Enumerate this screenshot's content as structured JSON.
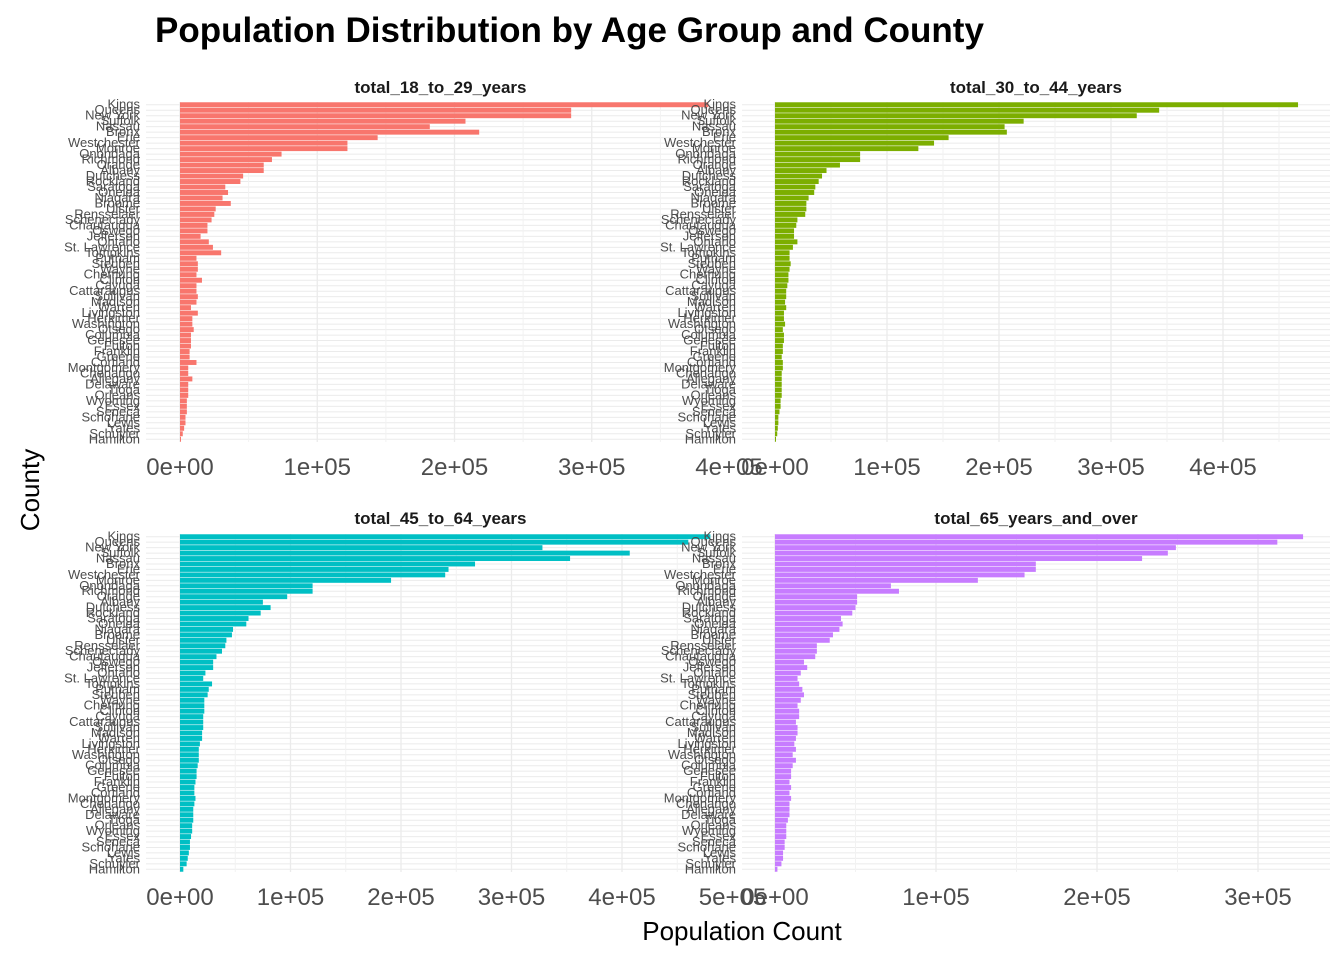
{
  "chart_data": {
    "type": "bar",
    "orientation": "horizontal",
    "title": "Population Distribution by Age Group and County",
    "xlabel": "Population Count",
    "ylabel": "County",
    "grid": true,
    "legend": "none",
    "counties": [
      "Kings",
      "Queens",
      "New York",
      "Suffolk",
      "Nassau",
      "Bronx",
      "Erie",
      "Westchester",
      "Monroe",
      "Onondaga",
      "Richmond",
      "Orange",
      "Albany",
      "Dutchess",
      "Rockland",
      "Saratoga",
      "Oneida",
      "Niagara",
      "Broome",
      "Ulster",
      "Rensselaer",
      "Schenectady",
      "Chautauqua",
      "Oswego",
      "Jefferson",
      "Ontario",
      "St. Lawrence",
      "Tompkins",
      "Putnam",
      "Steuben",
      "Wayne",
      "Chemung",
      "Clinton",
      "Cayuga",
      "Cattaraugus",
      "Sullivan",
      "Madison",
      "Warren",
      "Livingston",
      "Herkimer",
      "Washington",
      "Otsego",
      "Columbia",
      "Genesee",
      "Fulton",
      "Franklin",
      "Greene",
      "Cortland",
      "Montgomery",
      "Chenango",
      "Allegany",
      "Delaware",
      "Tioga",
      "Orleans",
      "Wyoming",
      "Essex",
      "Seneca",
      "Schoharie",
      "Lewis",
      "Yates",
      "Schuyler",
      "Hamilton"
    ],
    "facets": [
      {
        "name": "total_18_to_29_years",
        "color": "#F8766D",
        "xlim": [
          0,
          400000
        ],
        "ticks": [
          "0e+00",
          "1e+05",
          "2e+05",
          "3e+05",
          "4e+05"
        ],
        "values": [
          385000,
          285000,
          285000,
          208000,
          182000,
          218000,
          144000,
          122000,
          122000,
          74000,
          67000,
          61000,
          61000,
          46000,
          44000,
          33000,
          35000,
          31000,
          37000,
          26000,
          25000,
          23000,
          20000,
          20000,
          15000,
          21000,
          24000,
          30000,
          12000,
          13000,
          13000,
          12000,
          16000,
          12000,
          12000,
          13000,
          12000,
          8000,
          13000,
          9000,
          9000,
          10000,
          8000,
          8000,
          8000,
          7000,
          7000,
          12000,
          6000,
          6000,
          9000,
          6000,
          6000,
          6000,
          5000,
          5000,
          5000,
          4000,
          4000,
          3000,
          2000,
          500
        ]
      },
      {
        "name": "total_30_to_44_years",
        "color": "#7CAE00",
        "xlim": [
          0,
          480000
        ],
        "ticks": [
          "0e+00",
          "1e+05",
          "2e+05",
          "3e+05",
          "4e+05"
        ],
        "values": [
          467000,
          343000,
          323000,
          222000,
          205000,
          207000,
          155000,
          142000,
          128000,
          76000,
          76000,
          58000,
          46000,
          42000,
          39000,
          36000,
          35000,
          30000,
          28000,
          28000,
          27000,
          20000,
          19000,
          17000,
          17000,
          20000,
          16000,
          13000,
          13000,
          14000,
          13000,
          12000,
          12000,
          11000,
          10000,
          10000,
          9000,
          10000,
          8000,
          8000,
          9000,
          7000,
          8000,
          8000,
          7000,
          7000,
          6000,
          7000,
          7000,
          6000,
          6000,
          6000,
          6000,
          6000,
          5000,
          5000,
          4000,
          3000,
          3000,
          2500,
          2000,
          500
        ]
      },
      {
        "name": "total_45_to_64_years",
        "color": "#00BFC4",
        "xlim": [
          0,
          480000
        ],
        "ticks": [
          "0e+00",
          "1e+05",
          "2e+05",
          "3e+05",
          "4e+05",
          "5e+05"
        ],
        "values": [
          480000,
          460000,
          328000,
          407000,
          353000,
          267000,
          243000,
          240000,
          191000,
          120000,
          120000,
          97000,
          75000,
          82000,
          73000,
          62000,
          60000,
          48000,
          47000,
          42000,
          41000,
          38000,
          33000,
          30000,
          30000,
          23000,
          21000,
          29000,
          26000,
          25000,
          22000,
          22000,
          22000,
          21000,
          21000,
          21000,
          20000,
          20000,
          18000,
          17000,
          17000,
          17000,
          16000,
          15000,
          15000,
          14000,
          13000,
          13000,
          14000,
          13000,
          12000,
          12000,
          12000,
          11000,
          11000,
          10000,
          9000,
          9000,
          8000,
          7000,
          6000,
          3000
        ]
      },
      {
        "name": "total_65_years_and_over",
        "color": "#C77CFF",
        "xlim": [
          0,
          320000
        ],
        "ticks": [
          "0e+00",
          "1e+05",
          "2e+05",
          "3e+05"
        ],
        "values": [
          328000,
          312000,
          249000,
          244000,
          228000,
          162000,
          162000,
          155000,
          126000,
          72000,
          77000,
          51000,
          51000,
          50000,
          48000,
          41000,
          42000,
          40000,
          36000,
          34000,
          26000,
          26000,
          25000,
          18000,
          20000,
          16000,
          14000,
          15000,
          17000,
          18000,
          16000,
          14000,
          15000,
          15000,
          13000,
          14000,
          14000,
          13000,
          12000,
          13000,
          11000,
          13000,
          11000,
          10000,
          10000,
          9000,
          10000,
          9000,
          10000,
          9000,
          9000,
          9000,
          8000,
          7000,
          7000,
          7000,
          6000,
          6000,
          5000,
          5000,
          4000,
          1500
        ]
      }
    ]
  }
}
